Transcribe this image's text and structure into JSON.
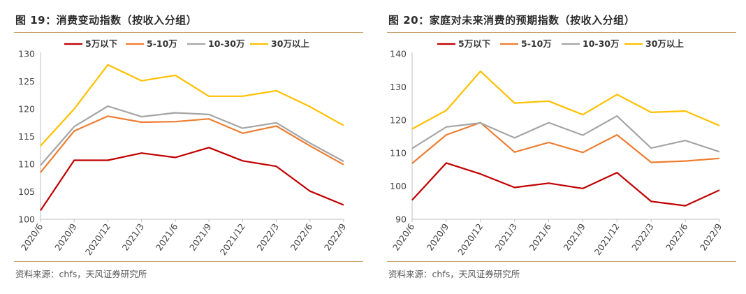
{
  "charts": [
    {
      "title": "图 19：消费变动指数（按收入分组）",
      "source": "资料来源：chfs，天风证券研究所"
    },
    {
      "title": "图 20：家庭对未来消费的预期指数（按收入分组）",
      "source": "资料来源：chfs，天风证券研究所"
    }
  ],
  "chart_data": [
    {
      "type": "line",
      "title": "图 19：消费变动指数（按收入分组）",
      "categories": [
        "2020/6",
        "2020/9",
        "2020/12",
        "2021/3",
        "2021/6",
        "2021/9",
        "2021/12",
        "2022/3",
        "2022/6",
        "2022/9"
      ],
      "ylim": [
        100,
        130
      ],
      "yticks": [
        100,
        105,
        110,
        115,
        120,
        125,
        130
      ],
      "grid": false,
      "legend": "top",
      "series": [
        {
          "name": "5万以下",
          "color": "#c00000",
          "values": [
            101.6,
            110.7,
            110.7,
            112.0,
            111.2,
            113.0,
            110.6,
            109.6,
            105.1,
            102.6
          ]
        },
        {
          "name": "5-10万",
          "color": "#ed7d31",
          "values": [
            108.5,
            116.0,
            118.7,
            117.6,
            117.7,
            118.2,
            115.6,
            116.9,
            113.3,
            109.9
          ]
        },
        {
          "name": "10-30万",
          "color": "#a5a5a5",
          "values": [
            109.8,
            116.8,
            120.5,
            118.6,
            119.3,
            119.0,
            116.5,
            117.5,
            113.8,
            110.5
          ]
        },
        {
          "name": "30万以上",
          "color": "#ffc000",
          "values": [
            113.3,
            120.0,
            128.0,
            125.1,
            126.1,
            122.3,
            122.3,
            123.3,
            120.4,
            117.0
          ]
        }
      ]
    },
    {
      "type": "line",
      "title": "图 20：家庭对未来消费的预期指数（按收入分组）",
      "categories": [
        "2020/6",
        "2020/9",
        "2020/12",
        "2021/3",
        "2021/6",
        "2021/9",
        "2021/12",
        "2022/3",
        "2022/6",
        "2022/9"
      ],
      "ylim": [
        90,
        140
      ],
      "yticks": [
        90,
        100,
        110,
        120,
        130,
        140
      ],
      "grid": false,
      "legend": "top",
      "series": [
        {
          "name": "5万以下",
          "color": "#c00000",
          "values": [
            95.8,
            107.0,
            103.7,
            99.6,
            100.9,
            99.3,
            104.1,
            95.4,
            94.1,
            98.8
          ]
        },
        {
          "name": "5-10万",
          "color": "#ed7d31",
          "values": [
            106.9,
            115.5,
            119.2,
            110.3,
            113.2,
            110.2,
            115.5,
            107.2,
            107.6,
            108.4
          ]
        },
        {
          "name": "10-30万",
          "color": "#a5a5a5",
          "values": [
            111.4,
            117.9,
            119.1,
            114.6,
            119.2,
            115.4,
            121.2,
            111.5,
            113.8,
            110.4
          ]
        },
        {
          "name": "30万以上",
          "color": "#ffc000",
          "values": [
            117.3,
            122.9,
            134.7,
            125.1,
            125.7,
            121.6,
            127.7,
            122.3,
            122.7,
            118.3
          ]
        }
      ]
    }
  ]
}
